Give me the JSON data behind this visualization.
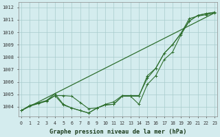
{
  "title": "Graphe pression niveau de la mer (hPa)",
  "bg_color": "#d4ecee",
  "grid_color": "#a8cccc",
  "line_color": "#2d6e2d",
  "ylim": [
    1003.2,
    1012.4
  ],
  "yticks": [
    1004,
    1005,
    1006,
    1007,
    1008,
    1009,
    1010,
    1011,
    1012
  ],
  "x_labels": [
    "0",
    "1",
    "2",
    "3",
    "4",
    "5",
    "6",
    "7",
    "8",
    "9",
    "10",
    "11",
    "12",
    "13",
    "14",
    "15",
    "16",
    "17",
    "18",
    "19",
    "20",
    "21",
    "22",
    "23"
  ],
  "series": [
    [
      1003.7,
      1004.1,
      1004.3,
      1004.5,
      1005.05,
      1004.2,
      1003.9,
      1003.7,
      1003.5,
      1003.9,
      1004.15,
      1004.2,
      1004.85,
      1004.85,
      1004.2,
      1005.8,
      1006.5,
      1007.8,
      1008.4,
      1009.8,
      1010.9,
      1011.35,
      1011.5,
      1011.6
    ],
    [
      1003.7,
      1004.05,
      1004.25,
      1004.45,
      1004.9,
      1004.9,
      1004.85,
      1004.35,
      1003.85,
      1003.9,
      1004.2,
      1004.4,
      1004.9,
      1004.9,
      1004.9,
      1006.3,
      1007.1,
      1008.3,
      1009.0,
      1009.9,
      1011.1,
      1011.3,
      1011.4,
      1011.55
    ],
    [
      1003.7,
      1004.1,
      1004.3,
      1004.5,
      1004.9,
      1004.15,
      1003.9,
      1003.7,
      1003.5,
      1003.9,
      1004.15,
      1004.2,
      1004.85,
      1004.85,
      1004.85,
      1006.5,
      1007.1,
      1008.3,
      1009.0,
      1009.9,
      1010.9,
      1011.35,
      1011.5,
      1011.6
    ]
  ],
  "straight_line": [
    [
      0,
      23
    ],
    [
      1003.7,
      1011.55
    ]
  ]
}
